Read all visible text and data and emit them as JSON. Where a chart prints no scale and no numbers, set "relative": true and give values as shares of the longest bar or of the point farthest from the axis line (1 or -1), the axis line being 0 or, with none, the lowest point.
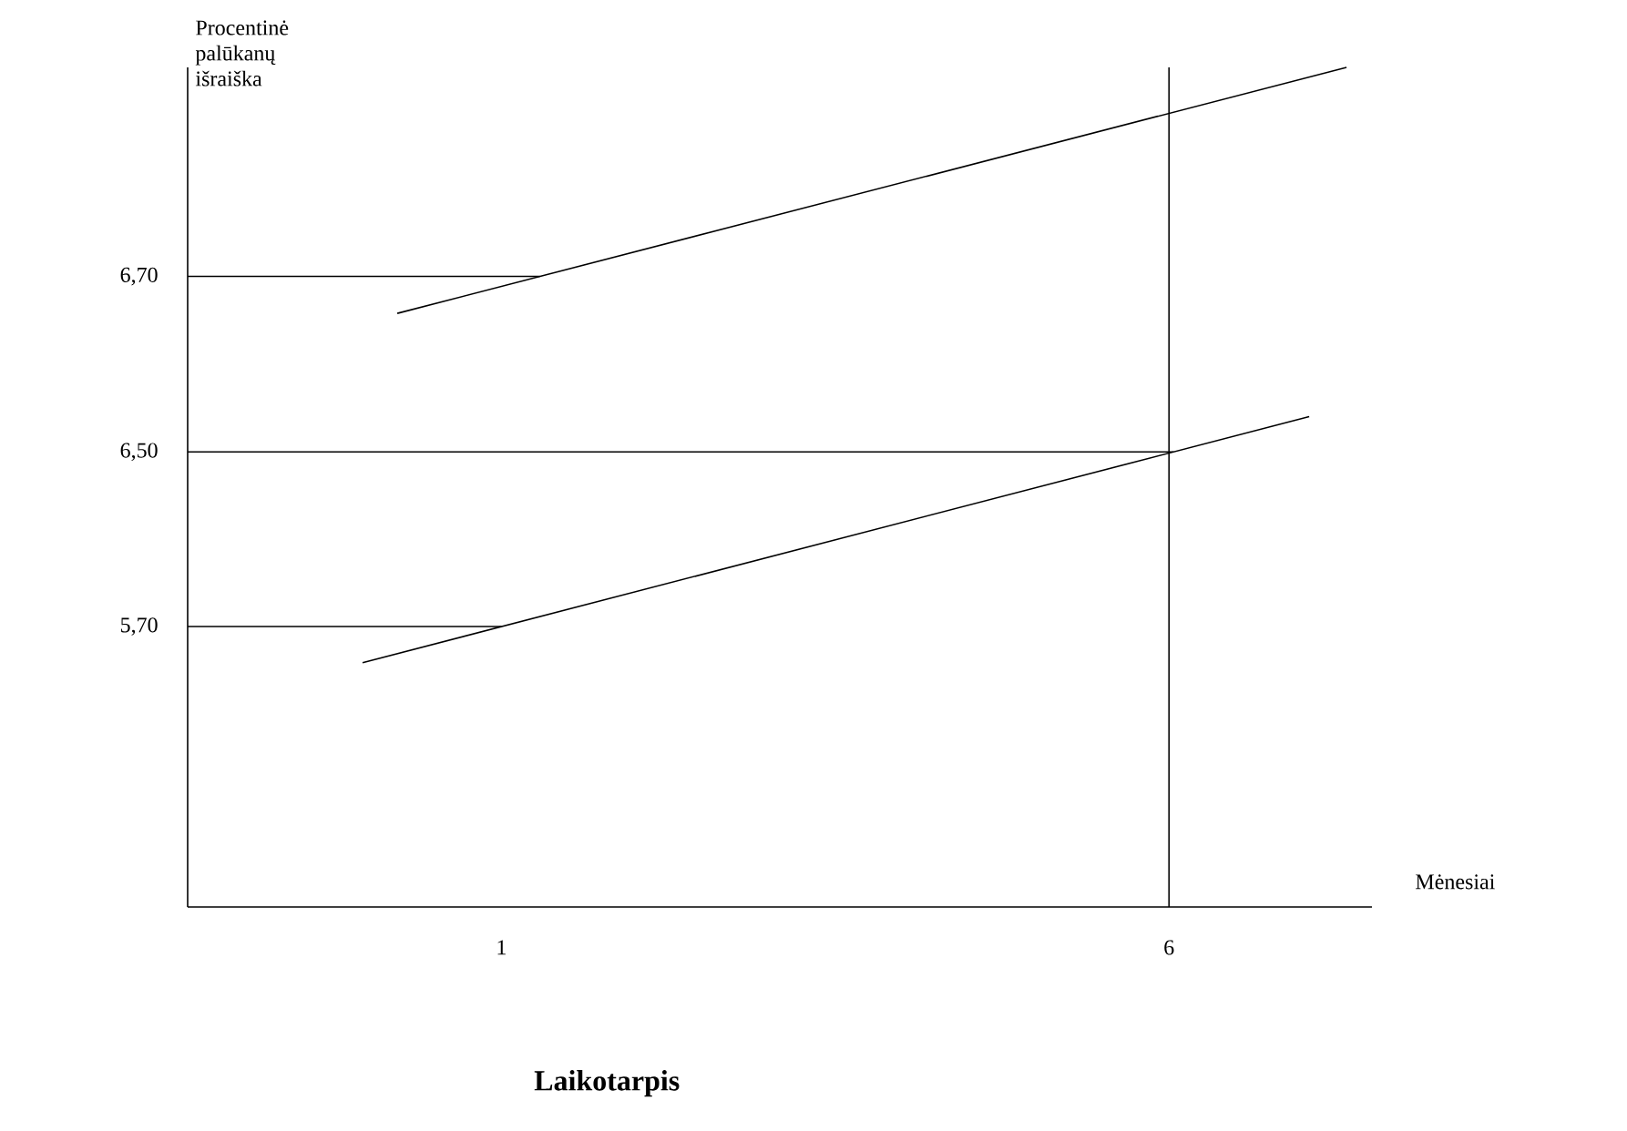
{
  "chart_data": {
    "type": "line",
    "relative": true,
    "ylabel": "Procentinė palūkanų išraiška",
    "xlabel": "Mėnesiai",
    "annotations": [
      "Laikotarpis",
      "6,70",
      "6,50",
      "5,70"
    ],
    "xlim": [
      -1.35,
      7.52
    ],
    "xticks": [
      1,
      6
    ],
    "series": [
      {
        "x": [
          0.22,
          7.33
        ],
        "values": [
          0.707,
          1.0
        ],
        "color": "#000000"
      },
      {
        "x": [
          -0.04,
          7.05
        ],
        "values": [
          0.291,
          0.584
        ],
        "color": "#000000"
      }
    ],
    "ref_lines": [
      {
        "axis": "y",
        "value": 0.751
      },
      {
        "axis": "y",
        "value": 0.542
      },
      {
        "axis": "y",
        "value": 0.334
      },
      {
        "axis": "x",
        "value": 6
      }
    ]
  }
}
